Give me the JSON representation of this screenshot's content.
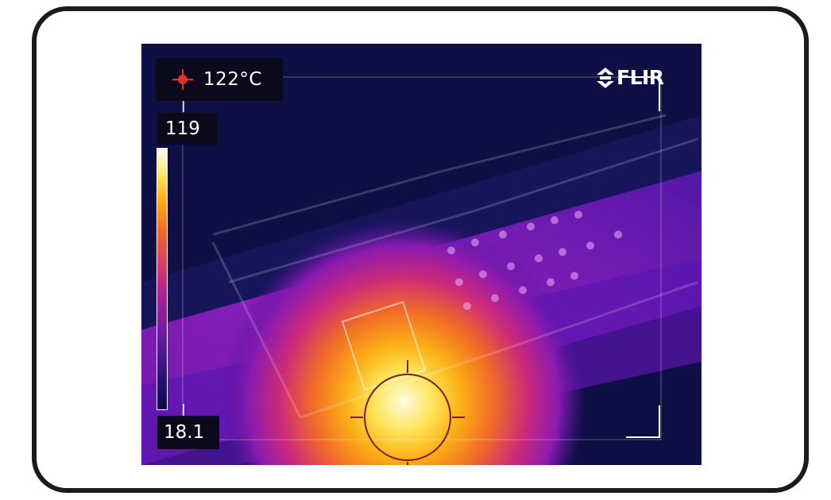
{
  "brand": {
    "name": "FLIR"
  },
  "spot_meter": {
    "value": "122°C",
    "icon": "crosshair-icon"
  },
  "temperature_scale": {
    "max": "119",
    "min": "18.1",
    "palette": "iron"
  },
  "colors": {
    "frame": "#1b1b1b",
    "readout_background": "#0a0a1c",
    "spot_marker": "#e0302a",
    "measure_circle": "#8b1f1f"
  }
}
